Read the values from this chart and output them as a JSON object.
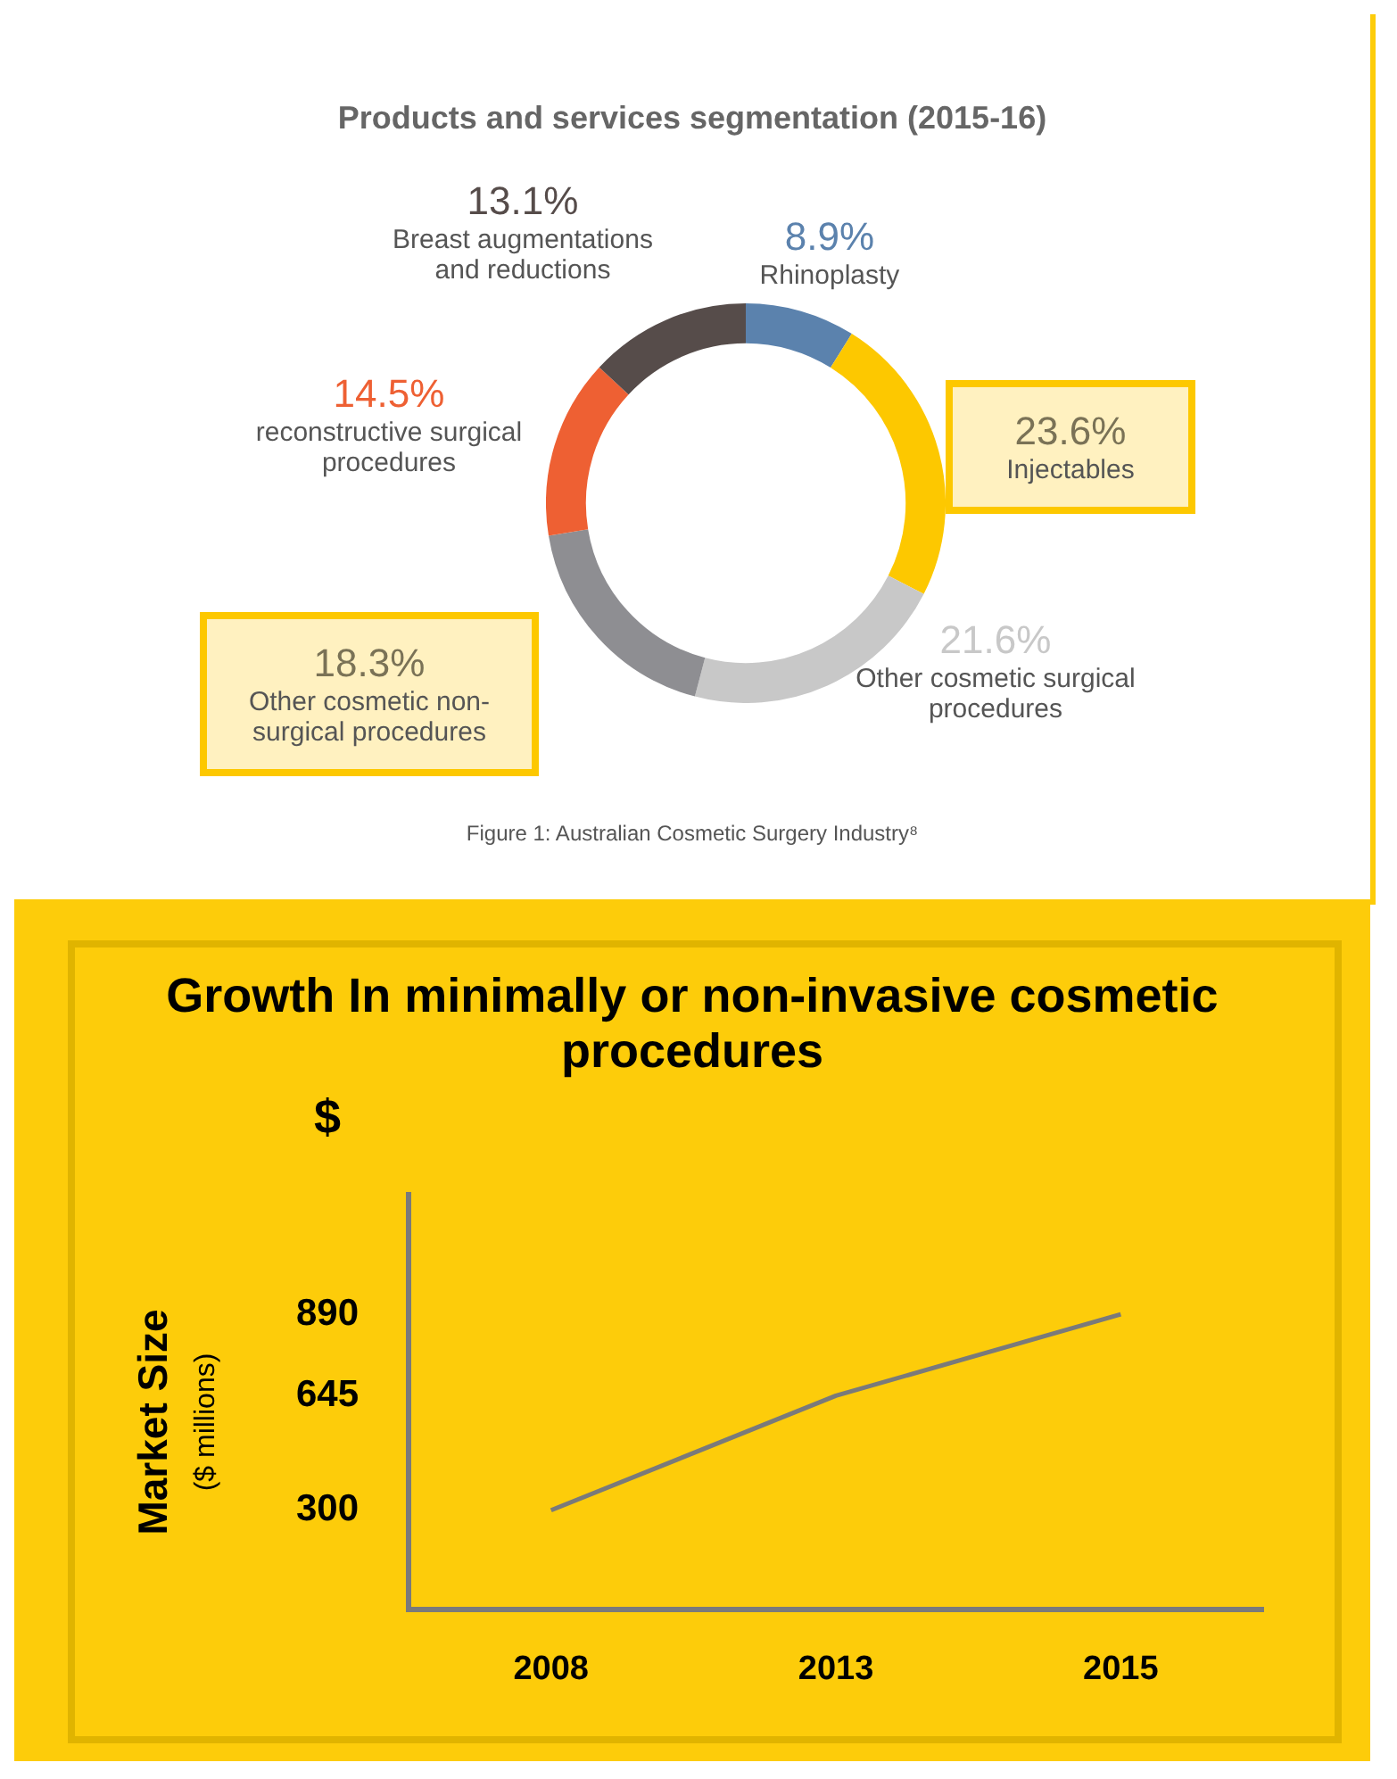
{
  "chart_data": [
    {
      "type": "donut",
      "title": "Products and services segmentation (2015-16)",
      "categories": [
        "Rhinoplasty",
        "Injectables",
        "Other cosmetic surgical procedures",
        "Other cosmetic non-surgical procedures",
        "reconstructive surgical procedures",
        "Breast augmentations and reductions"
      ],
      "values": [
        8.9,
        23.6,
        21.6,
        18.3,
        14.5,
        13.1
      ],
      "value_labels": [
        "8.9%",
        "23.6%",
        "21.6%",
        "18.3%",
        "14.5%",
        "13.1%"
      ],
      "colors": [
        "#5b82ad",
        "#fdc800",
        "#c8c8c8",
        "#8e8e92",
        "#ee6033",
        "#564c4a"
      ],
      "legend": false,
      "annotations": [
        "Figure 1: Australian Cosmetic Surgery Industry⁸"
      ]
    },
    {
      "type": "line",
      "title": "Growth In minimally or non-invasive cosmetic procedures",
      "ylabel": "Market Size",
      "categories": [
        "2008",
        "2013",
        "2015"
      ],
      "series": [
        {
          "color": "#7a7a7a",
          "values": [
            300,
            645,
            890
          ]
        }
      ],
      "ylim": [
        0,
        1250
      ],
      "yticks": [
        300,
        645,
        890
      ],
      "grid": false,
      "legend": false,
      "marker": "none",
      "line_style": "solid",
      "annotations": [
        "($ millions)",
        "$"
      ]
    }
  ]
}
